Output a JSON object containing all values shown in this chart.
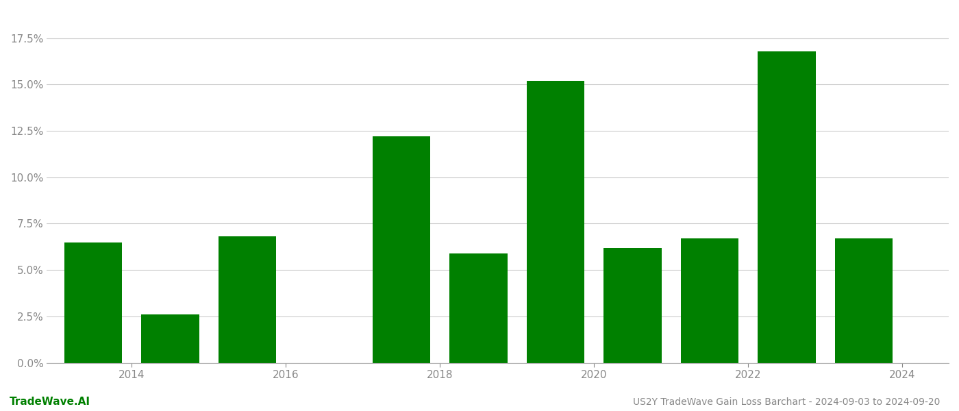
{
  "years": [
    2013,
    2014,
    2015,
    2016,
    2017,
    2018,
    2019,
    2020,
    2021,
    2022,
    2023
  ],
  "values": [
    0.065,
    0.026,
    0.068,
    0.0,
    0.122,
    0.059,
    0.152,
    0.062,
    0.067,
    0.168,
    0.067
  ],
  "bar_color": "#008000",
  "background_color": "#ffffff",
  "grid_color": "#cccccc",
  "ylabel_color": "#888888",
  "xlabel_color": "#888888",
  "title_text": "US2Y TradeWave Gain Loss Barchart - 2024-09-03 to 2024-09-20",
  "watermark_text": "TradeWave.AI",
  "ylim": [
    0,
    0.19
  ],
  "yticks": [
    0.0,
    0.025,
    0.05,
    0.075,
    0.1,
    0.125,
    0.15,
    0.175
  ],
  "xtick_positions": [
    2013.5,
    2015.5,
    2017.5,
    2019.5,
    2021.5,
    2023.5
  ],
  "xtick_labels": [
    "2014",
    "2016",
    "2018",
    "2020",
    "2022",
    "2024"
  ],
  "title_fontsize": 10,
  "watermark_fontsize": 11,
  "tick_fontsize": 11,
  "bar_width": 0.75
}
